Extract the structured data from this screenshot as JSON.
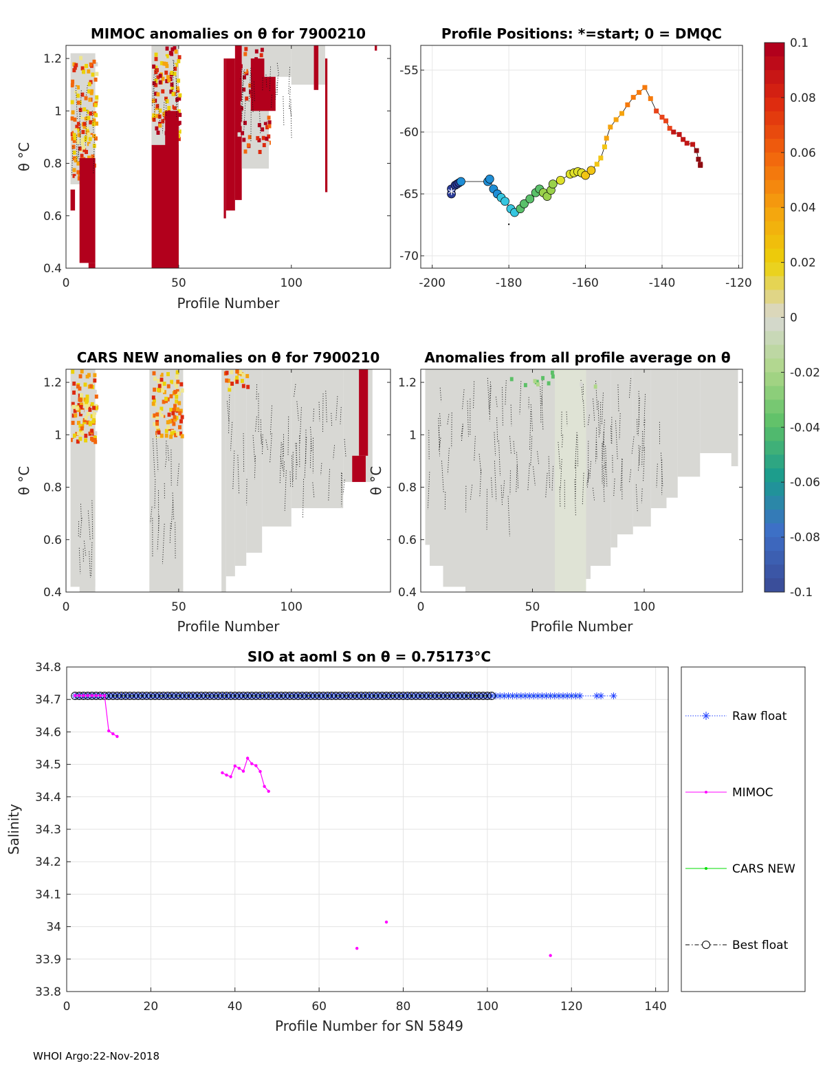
{
  "footer": "WHOI Argo:22-Nov-2018",
  "panels": {
    "mimoc": {
      "title": "MIMOC anomalies on θ  for 7900210",
      "xlabel": "Profile Number",
      "ylabel": "θ °C"
    },
    "positions": {
      "title": "Profile Positions: *=start; 0 = DMQC"
    },
    "cars": {
      "title": "CARS NEW anomalies on θ for 7900210",
      "xlabel": "Profile Number",
      "ylabel": "θ °C"
    },
    "allavg": {
      "title": "Anomalies from all profile average on θ",
      "xlabel": "Profile Number",
      "ylabel": "θ °C"
    }
  },
  "colorbar": {
    "ticks": [
      "0.1",
      "0.08",
      "0.06",
      "0.04",
      "0.02",
      "0",
      "-0.02",
      "-0.04",
      "-0.06",
      "-0.08",
      "-0.1"
    ],
    "colors": [
      "#b2001c",
      "#dd2a0f",
      "#f2660d",
      "#f5a30e",
      "#ecd10a",
      "#d8d8d4",
      "#aed788",
      "#5cc067",
      "#1a9b8e",
      "#3e6fc7",
      "#3a4e9a"
    ]
  },
  "chart_data": [
    {
      "id": "mimoc-anomaly",
      "type": "heatmap",
      "title": "MIMOC anomalies on θ  for 7900210",
      "xlabel": "Profile Number",
      "ylabel": "θ °C",
      "xlim": [
        0,
        144
      ],
      "ylim": [
        0.4,
        1.25
      ],
      "xticks": [
        "0",
        "50",
        "100"
      ],
      "yticks": [
        "0.4",
        "0.6",
        "0.8",
        "1",
        "1.2"
      ]
    },
    {
      "id": "profile-positions",
      "type": "scatter",
      "title": "Profile Positions: *=start; 0 = DMQC",
      "xlim": [
        -203,
        -119
      ],
      "ylim": [
        -71,
        -53
      ],
      "xticks": [
        "-200",
        "-180",
        "-160",
        "-140",
        "-120"
      ],
      "yticks": [
        "-55",
        "-60",
        "-65",
        "-70"
      ],
      "track": [
        [
          -195,
          -65
        ],
        [
          -195,
          -64.6
        ],
        [
          -194,
          -64.3
        ],
        [
          -193.5,
          -64.2
        ],
        [
          -193,
          -64.1
        ],
        [
          -192.5,
          -64
        ],
        [
          -185.5,
          -64
        ],
        [
          -185,
          -63.8
        ],
        [
          -184,
          -64.6
        ],
        [
          -183,
          -65
        ],
        [
          -182,
          -65.3
        ],
        [
          -181,
          -65.6
        ],
        [
          -179.5,
          -66.2
        ],
        [
          -178.5,
          -66.5
        ],
        [
          -177,
          -66.2
        ],
        [
          -176,
          -65.8
        ],
        [
          -174.5,
          -65.4
        ],
        [
          -173,
          -64.9
        ],
        [
          -172,
          -64.6
        ],
        [
          -171,
          -64.9
        ],
        [
          -170,
          -65.2
        ],
        [
          -169,
          -64.7
        ],
        [
          -168.5,
          -64.2
        ],
        [
          -166.5,
          -63.9
        ],
        [
          -164,
          -63.4
        ],
        [
          -163,
          -63.3
        ],
        [
          -162,
          -63.2
        ],
        [
          -161,
          -63.3
        ],
        [
          -160,
          -63.5
        ],
        [
          -158.5,
          -63.1
        ],
        [
          -157,
          -62.6
        ],
        [
          -156,
          -62.1
        ],
        [
          -155,
          -61.2
        ],
        [
          -154.5,
          -60.5
        ],
        [
          -153.5,
          -59.6
        ],
        [
          -152,
          -59
        ],
        [
          -150.5,
          -58.5
        ],
        [
          -149,
          -57.8
        ],
        [
          -147.5,
          -57.2
        ],
        [
          -146,
          -56.8
        ],
        [
          -144.5,
          -56.4
        ],
        [
          -143,
          -57.3
        ],
        [
          -141.5,
          -58.3
        ],
        [
          -140,
          -58.8
        ],
        [
          -139,
          -59.1
        ],
        [
          -138,
          -59.7
        ],
        [
          -137,
          -60
        ],
        [
          -135.5,
          -60.2
        ],
        [
          -134.5,
          -60.6
        ],
        [
          -133.5,
          -60.9
        ],
        [
          -132,
          -61
        ],
        [
          -131,
          -61.5
        ],
        [
          -130.5,
          -62.2
        ],
        [
          -130,
          -62.6
        ],
        [
          -130,
          -62.7
        ]
      ]
    },
    {
      "id": "cars-anomaly",
      "type": "heatmap",
      "title": "CARS NEW anomalies on θ for 7900210",
      "xlabel": "Profile Number",
      "ylabel": "θ °C",
      "xlim": [
        0,
        144
      ],
      "ylim": [
        0.4,
        1.25
      ],
      "xticks": [
        "0",
        "50",
        "100"
      ],
      "yticks": [
        "0.4",
        "0.6",
        "0.8",
        "1",
        "1.2"
      ]
    },
    {
      "id": "allavg-anomaly",
      "type": "heatmap",
      "title": "Anomalies from all profile average on θ",
      "xlabel": "Profile Number",
      "ylabel": "θ °C",
      "xlim": [
        0,
        144
      ],
      "ylim": [
        0.4,
        1.25
      ],
      "xticks": [
        "0",
        "50",
        "100"
      ],
      "yticks": [
        "0.4",
        "0.6",
        "0.8",
        "1",
        "1.2"
      ]
    },
    {
      "id": "salinity",
      "type": "line",
      "title": "SIO at aoml S on θ = 0.75173°C",
      "xlabel": "Profile Number for SN 5849",
      "ylabel": "Salinity",
      "xlim": [
        0,
        143
      ],
      "ylim": [
        33.8,
        34.8
      ],
      "xticks": [
        "0",
        "20",
        "40",
        "60",
        "80",
        "100",
        "120",
        "140"
      ],
      "yticks": [
        "33.8",
        "33.9",
        "34",
        "34.1",
        "34.2",
        "34.3",
        "34.4",
        "34.5",
        "34.6",
        "34.7",
        "34.8"
      ],
      "legend": [
        "Raw float",
        "MIMOC",
        "CARS NEW",
        "Best float"
      ],
      "series": [
        {
          "name": "Raw float",
          "color": "#1f3fff",
          "value": 34.711,
          "x_range": [
            2,
            130
          ]
        },
        {
          "name": "MIMOC",
          "color": "#ff00ff",
          "x": [
            2,
            3,
            4,
            5,
            6,
            7,
            8,
            9,
            10,
            11,
            12,
            37,
            38,
            39,
            40,
            41,
            42,
            43,
            44,
            45,
            46,
            47,
            48,
            69,
            76,
            115
          ],
          "y": [
            34.712,
            34.712,
            34.712,
            34.712,
            34.712,
            34.712,
            34.712,
            34.712,
            34.603,
            34.594,
            34.586,
            34.474,
            34.467,
            34.462,
            34.495,
            34.488,
            34.479,
            34.519,
            34.502,
            34.496,
            34.478,
            34.432,
            34.417,
            33.933,
            34.014,
            33.911
          ]
        },
        {
          "name": "CARS NEW",
          "color": "#00dd00",
          "value": 34.711,
          "x_range": [
            2,
            122
          ]
        },
        {
          "name": "Best float",
          "color": "#000000",
          "value": 34.711,
          "x_range": [
            2,
            101
          ]
        }
      ]
    }
  ]
}
